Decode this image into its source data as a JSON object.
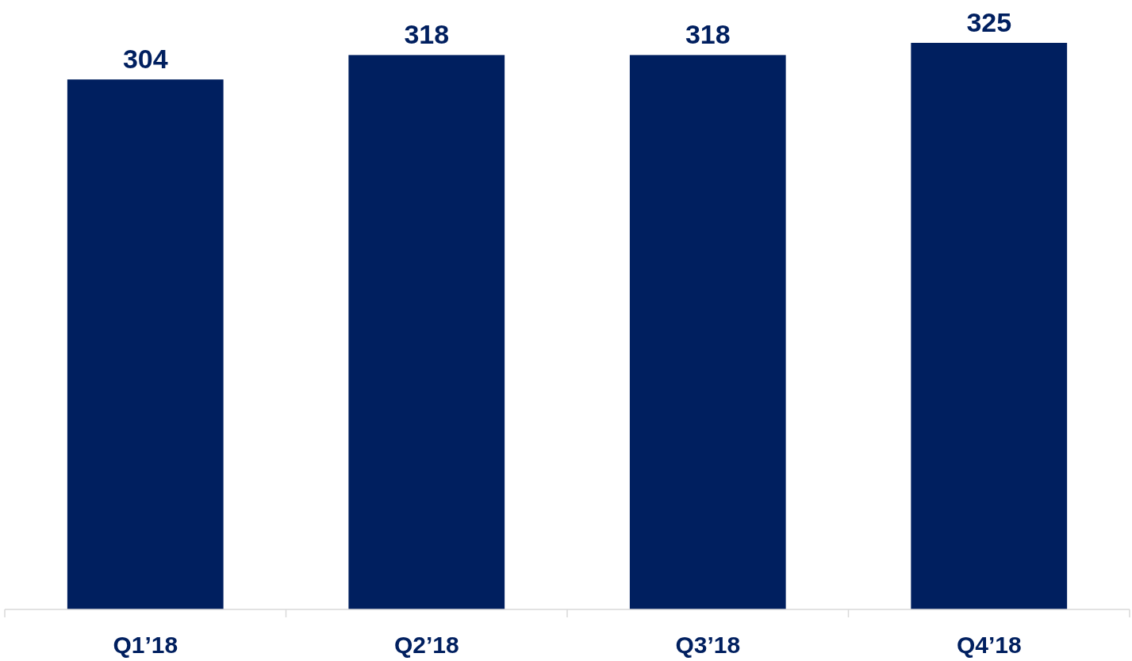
{
  "chart_data": {
    "type": "bar",
    "categories": [
      "Q1’18",
      "Q2’18",
      "Q3’18",
      "Q4’18"
    ],
    "values": [
      304,
      318,
      318,
      325
    ],
    "color": "#001f5f",
    "data_labels": true
  }
}
